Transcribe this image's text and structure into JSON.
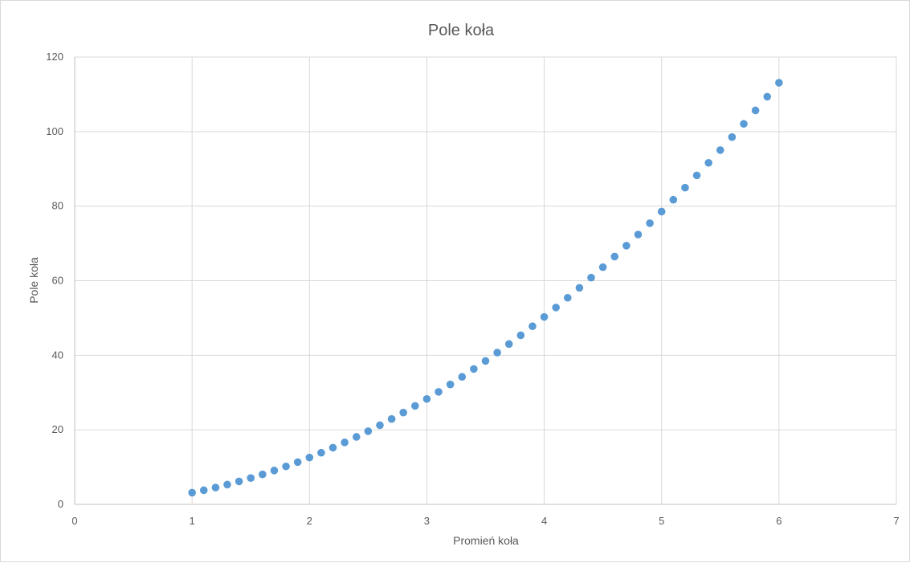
{
  "chart_data": {
    "type": "scatter",
    "title": "Pole koła",
    "xlabel": "Promień koła",
    "ylabel": "Pole koła",
    "xlim": [
      0,
      7
    ],
    "ylim": [
      0,
      120
    ],
    "x_ticks": [
      0,
      1,
      2,
      3,
      4,
      5,
      6,
      7
    ],
    "y_ticks": [
      0,
      20,
      40,
      60,
      80,
      100,
      120
    ],
    "grid": true,
    "legend": "none",
    "marker_color": "#5b9bd5",
    "series": [
      {
        "x": [
          1,
          1.1,
          1.2,
          1.3,
          1.4,
          1.5,
          1.6,
          1.7,
          1.8,
          1.9,
          2,
          2.1,
          2.2,
          2.3,
          2.4,
          2.5,
          2.6,
          2.7,
          2.8,
          2.9,
          3,
          3.1,
          3.2,
          3.3,
          3.4,
          3.5,
          3.6,
          3.7,
          3.8,
          3.9,
          4,
          4.1,
          4.2,
          4.3,
          4.4,
          4.5,
          4.6,
          4.7,
          4.8,
          4.9,
          5,
          5.1,
          5.2,
          5.3,
          5.4,
          5.5,
          5.6,
          5.7,
          5.8,
          5.9,
          6
        ],
        "y": [
          3.14,
          3.8,
          4.52,
          5.31,
          6.16,
          7.07,
          8.04,
          9.08,
          10.18,
          11.34,
          12.57,
          13.85,
          15.21,
          16.62,
          18.1,
          19.63,
          21.24,
          22.9,
          24.63,
          26.42,
          28.27,
          30.19,
          32.17,
          34.21,
          36.32,
          38.48,
          40.72,
          43.01,
          45.36,
          47.78,
          50.27,
          52.81,
          55.42,
          58.09,
          60.82,
          63.62,
          66.48,
          69.4,
          72.38,
          75.43,
          78.54,
          81.71,
          84.95,
          88.25,
          91.61,
          95.03,
          98.52,
          102.07,
          105.68,
          109.36,
          113.1
        ]
      }
    ]
  }
}
